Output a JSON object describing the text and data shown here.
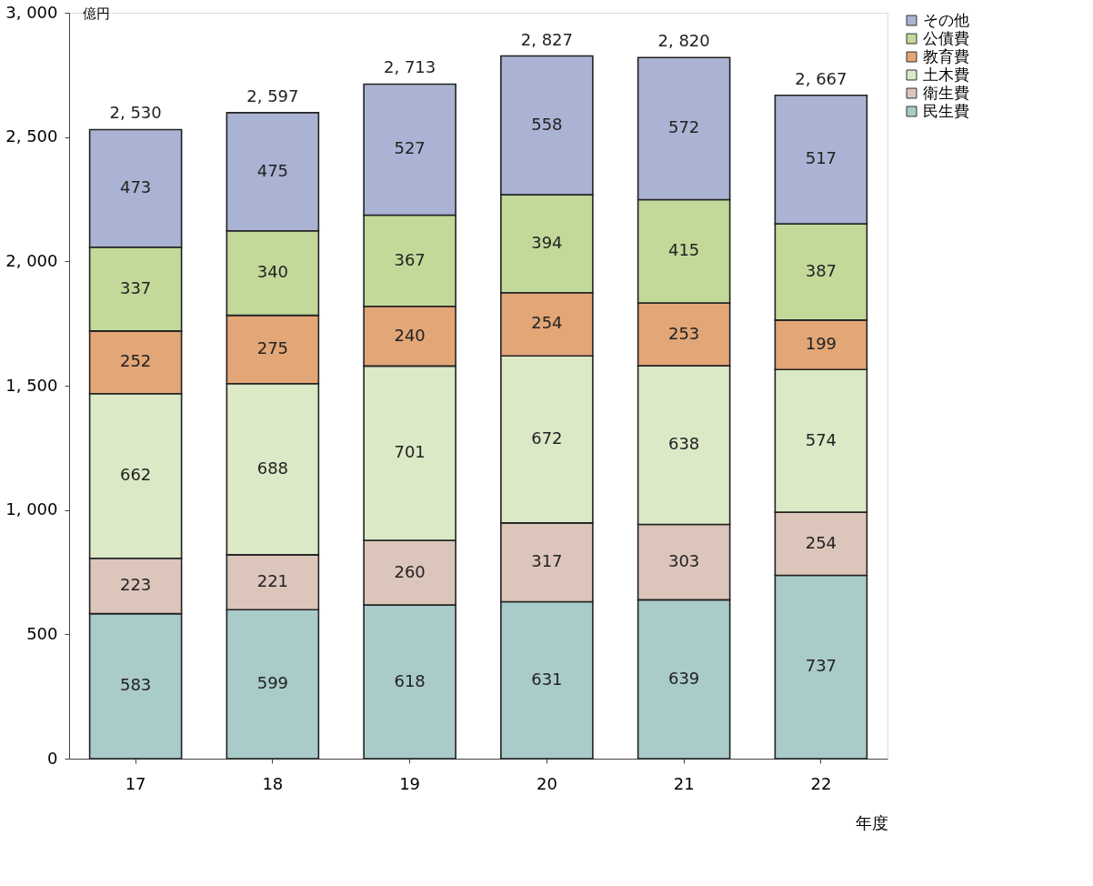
{
  "chart_data": {
    "type": "bar",
    "stacked": true,
    "ylabel": "億円",
    "xlabel": "年度",
    "categories": [
      "17",
      "18",
      "19",
      "20",
      "21",
      "22"
    ],
    "series": [
      {
        "name": "民生費",
        "color": "#a9cbc9",
        "values": [
          583,
          599,
          618,
          631,
          639,
          737
        ]
      },
      {
        "name": "衛生費",
        "color": "#dcc5bb",
        "values": [
          223,
          221,
          260,
          317,
          303,
          254
        ]
      },
      {
        "name": "土木費",
        "color": "#dbe9c6",
        "values": [
          662,
          688,
          701,
          672,
          638,
          574
        ]
      },
      {
        "name": "教育費",
        "color": "#e2a677",
        "values": [
          252,
          275,
          240,
          254,
          253,
          199
        ]
      },
      {
        "name": "公債費",
        "color": "#c3d99a",
        "values": [
          337,
          340,
          367,
          394,
          415,
          387
        ]
      },
      {
        "name": "その他",
        "color": "#aab3d3",
        "values": [
          473,
          475,
          527,
          558,
          572,
          517
        ]
      }
    ],
    "totals": [
      "2, 530",
      "2, 597",
      "2, 713",
      "2, 827",
      "2, 820",
      "2, 667"
    ],
    "data_labels": true,
    "ylim": [
      0,
      3000
    ],
    "yticks": [
      {
        "value": 0,
        "label": "0"
      },
      {
        "value": 500,
        "label": "500"
      },
      {
        "value": 1000,
        "label": "1, 000"
      },
      {
        "value": 1500,
        "label": "1, 500"
      },
      {
        "value": 2000,
        "label": "2, 000"
      },
      {
        "value": 2500,
        "label": "2, 500"
      },
      {
        "value": 3000,
        "label": "3, 000"
      }
    ],
    "grid": false,
    "legend": "top right"
  }
}
